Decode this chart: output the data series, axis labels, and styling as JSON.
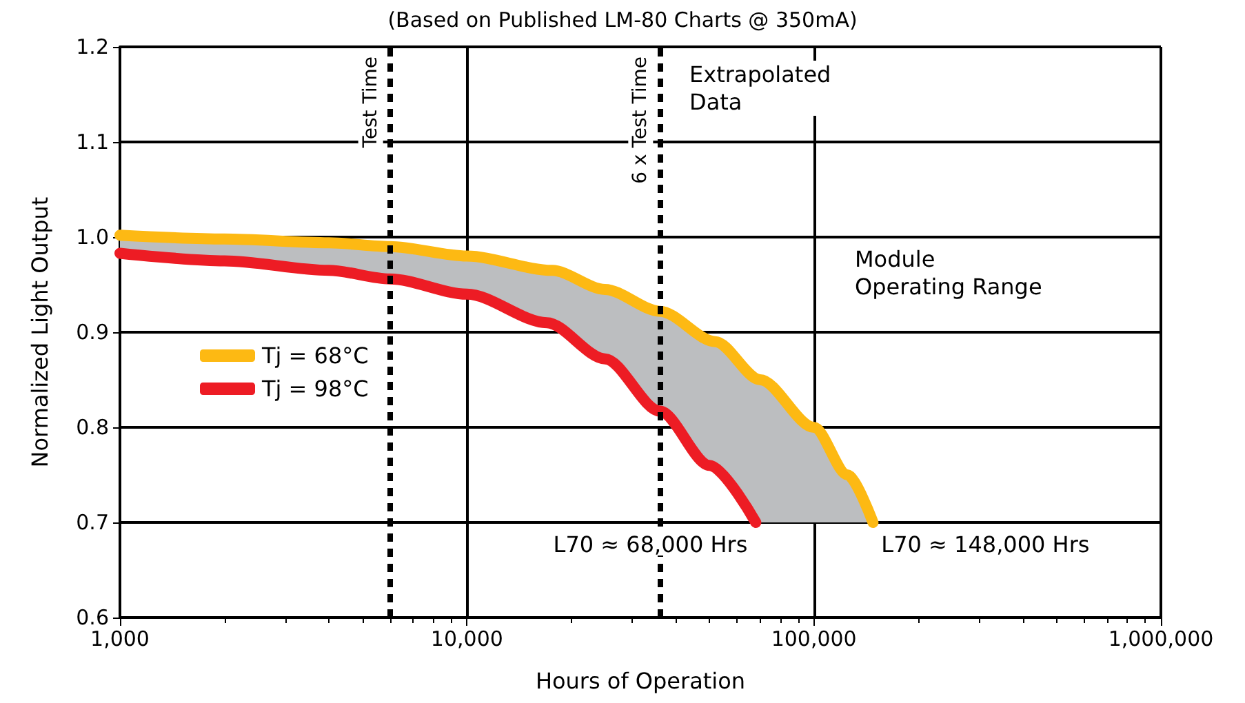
{
  "chart_data": {
    "type": "line",
    "subtitle": "(Based on Published LM-80 Charts @ 350mA)",
    "xlabel": "Hours of Operation",
    "ylabel": "Normalized Light Output",
    "log": "x",
    "grid": true,
    "legend": "left",
    "line_style": "solid",
    "marker": "none",
    "xlim": [
      1000,
      1000000
    ],
    "xticks": [
      {
        "value": 1000,
        "label": "1,000"
      },
      {
        "value": 10000,
        "label": "10,000"
      },
      {
        "value": 100000,
        "label": "100,000"
      },
      {
        "value": 1000000,
        "label": "1,000,000"
      }
    ],
    "ylim": [
      0.6,
      1.2
    ],
    "yticks": [
      0.6,
      0.7,
      0.8,
      0.9,
      {
        "value": 1,
        "label": "1.0"
      },
      1.1,
      1.2
    ],
    "series": [
      {
        "name": "Tj = 68°C",
        "color": "#fdb913",
        "x": [
          1000,
          2000,
          4000,
          6000,
          10000,
          17600,
          25000,
          36000,
          52000,
          70000,
          100000,
          125000,
          148000
        ],
        "values": [
          1.002,
          0.998,
          0.994,
          0.99,
          0.98,
          0.965,
          0.945,
          0.922,
          0.89,
          0.85,
          0.8,
          0.75,
          0.7
        ],
        "lower": [
          0.983,
          0.975,
          0.965,
          0.956,
          0.94,
          0.908,
          0.872,
          0.817,
          0.755,
          0.7,
          0.7,
          0.7,
          0.7
        ],
        "upper": [
          1.002,
          0.998,
          0.994,
          0.99,
          0.98,
          0.965,
          0.945,
          0.922,
          0.89,
          0.85,
          0.8,
          0.75,
          0.7
        ]
      },
      {
        "name": "Tj = 98°C",
        "color": "#ed1c24",
        "x": [
          1000,
          2000,
          4000,
          6000,
          10000,
          17000,
          25000,
          36000,
          50000,
          68000
        ],
        "values": [
          0.983,
          0.975,
          0.965,
          0.956,
          0.94,
          0.91,
          0.872,
          0.817,
          0.76,
          0.7
        ]
      }
    ],
    "ref_lines": [
      {
        "axis": "x",
        "value": 6000,
        "label": "Test Time",
        "line_style": "dashed",
        "color": "#000000"
      },
      {
        "axis": "x",
        "value": 36000,
        "label": "6 x Test Time",
        "line_style": "dashed",
        "color": "#000000"
      }
    ],
    "annotations": [
      "Extrapolated Data",
      "Module Operating Range",
      {
        "text": "L70 ≈ 68,000 Hrs",
        "x": 68000,
        "y": 0.7
      },
      {
        "text": "L70 ≈ 148,000 Hrs",
        "x": 148000,
        "y": 0.7
      }
    ]
  }
}
